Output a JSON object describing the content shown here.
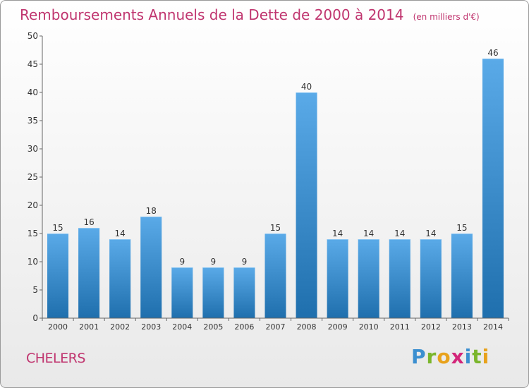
{
  "header": {
    "title": "Remboursements Annuels de la Dette de 2000 à 2014",
    "unit": "(en milliers d'€)"
  },
  "footer": {
    "commune": "CHELERS",
    "logo": "Proxiti"
  },
  "colors": {
    "accent": "#c0356f",
    "bar_light": "#5aaae8",
    "bar_dark": "#1f6fad"
  },
  "chart_data": {
    "type": "bar",
    "title": "Remboursements Annuels de la Dette de 2000 à 2014",
    "categories": [
      "2000",
      "2001",
      "2002",
      "2003",
      "2004",
      "2005",
      "2006",
      "2007",
      "2008",
      "2009",
      "2010",
      "2011",
      "2012",
      "2013",
      "2014"
    ],
    "values": [
      15,
      16,
      14,
      18,
      9,
      9,
      9,
      15,
      40,
      14,
      14,
      14,
      14,
      15,
      46
    ],
    "ylim": [
      0,
      50
    ],
    "yticks": [
      0,
      5,
      10,
      15,
      20,
      25,
      30,
      35,
      40,
      45,
      50
    ],
    "grid": false,
    "xlabel": "",
    "ylabel": ""
  }
}
